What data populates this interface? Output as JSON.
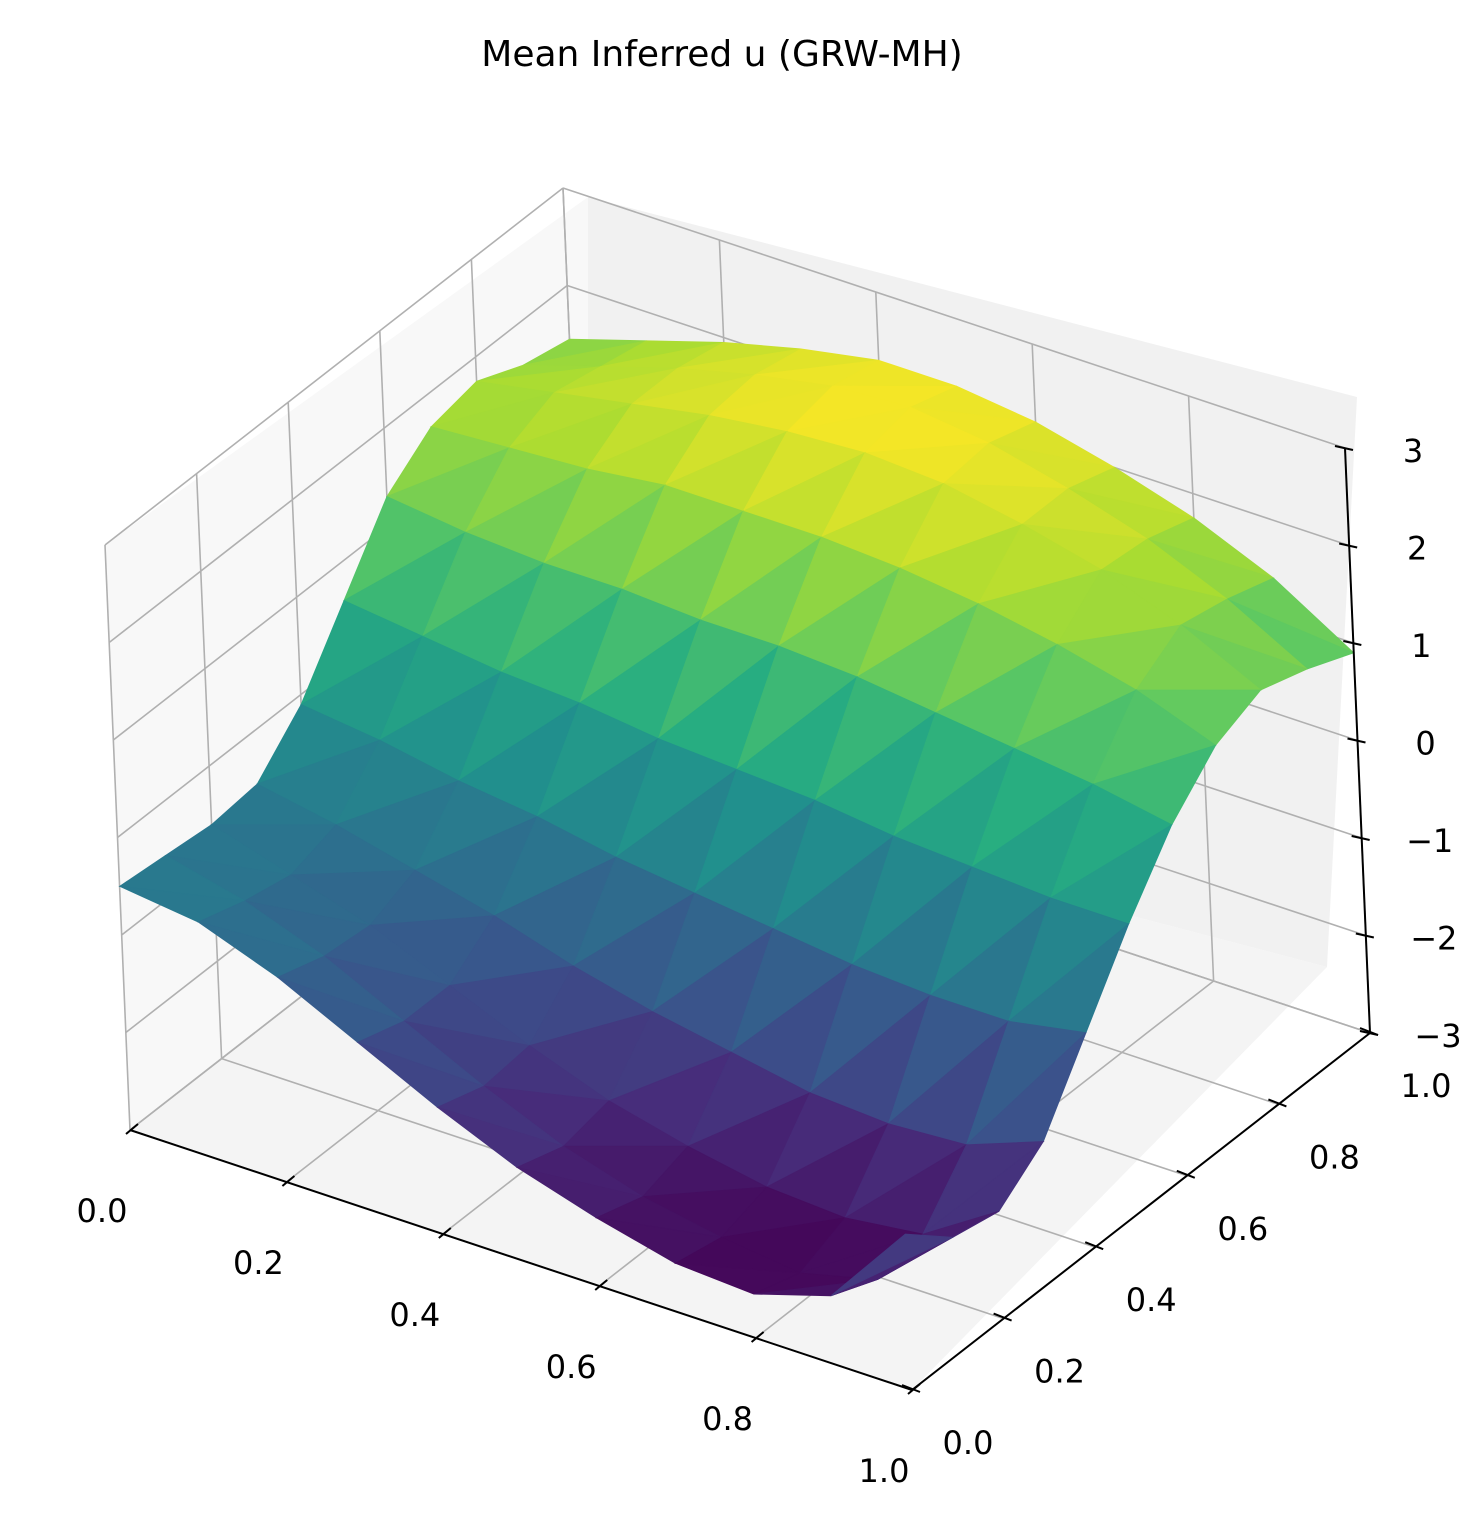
{
  "chart_data": {
    "type": "surface",
    "title": "Mean Inferred u (GRW-MH)",
    "xlabel": "",
    "ylabel": "",
    "zlabel": "",
    "xlim": [
      0,
      1
    ],
    "ylim": [
      0,
      1
    ],
    "zlim": [
      -3,
      3
    ],
    "x_ticks": [
      "0.0",
      "0.2",
      "0.4",
      "0.6",
      "0.8",
      "1.0"
    ],
    "y_ticks": [
      "0.0",
      "0.2",
      "0.4",
      "0.6",
      "0.8",
      "1.0"
    ],
    "z_ticks": [
      "−3",
      "−2",
      "−1",
      "0",
      "1",
      "2",
      "3"
    ],
    "grid": true,
    "colormap": "viridis",
    "grid_x": [
      0.0,
      0.1,
      0.2,
      0.3,
      0.4,
      0.5,
      0.6,
      0.7,
      0.8,
      0.9,
      1.0
    ],
    "grid_y": [
      0.0,
      0.1,
      0.2,
      0.3,
      0.4,
      0.5,
      0.6,
      0.7,
      0.8,
      0.9,
      1.0
    ],
    "z_values": [
      [
        -0.5,
        -0.55,
        -0.6,
        -0.55,
        -0.1,
        0.6,
        1.3,
        1.65,
        1.75,
        1.55,
        1.45
      ],
      [
        -0.6,
        -0.75,
        -0.85,
        -0.7,
        -0.2,
        0.5,
        1.2,
        1.7,
        1.9,
        1.8,
        1.7
      ],
      [
        -0.9,
        -1.05,
        -1.1,
        -0.9,
        -0.35,
        0.4,
        1.15,
        1.75,
        2.05,
        2.05,
        1.95
      ],
      [
        -1.3,
        -1.45,
        -1.45,
        -1.1,
        -0.45,
        0.35,
        1.15,
        1.85,
        2.2,
        2.25,
        2.15
      ],
      [
        -1.7,
        -1.85,
        -1.8,
        -1.35,
        -0.6,
        0.25,
        1.1,
        1.85,
        2.3,
        2.4,
        2.3
      ],
      [
        -2.05,
        -2.2,
        -2.1,
        -1.55,
        -0.7,
        0.2,
        1.1,
        1.85,
        2.35,
        2.45,
        2.3
      ],
      [
        -2.3,
        -2.45,
        -2.3,
        -1.7,
        -0.8,
        0.15,
        1.05,
        1.8,
        2.3,
        2.35,
        2.2
      ],
      [
        -2.5,
        -2.6,
        -2.45,
        -1.85,
        -0.9,
        0.05,
        0.95,
        1.7,
        2.15,
        2.15,
        2.0
      ],
      [
        -2.55,
        -2.7,
        -2.5,
        -1.9,
        -0.95,
        0.0,
        0.85,
        1.55,
        1.95,
        1.9,
        1.75
      ],
      [
        -2.3,
        -2.5,
        -2.4,
        -1.85,
        -0.95,
        -0.05,
        0.75,
        1.35,
        1.65,
        1.55,
        1.4
      ],
      [
        -1.4,
        -1.8,
        -1.9,
        -1.55,
        -0.8,
        -0.05,
        0.6,
        1.05,
        1.25,
        1.1,
        0.9
      ]
    ]
  }
}
